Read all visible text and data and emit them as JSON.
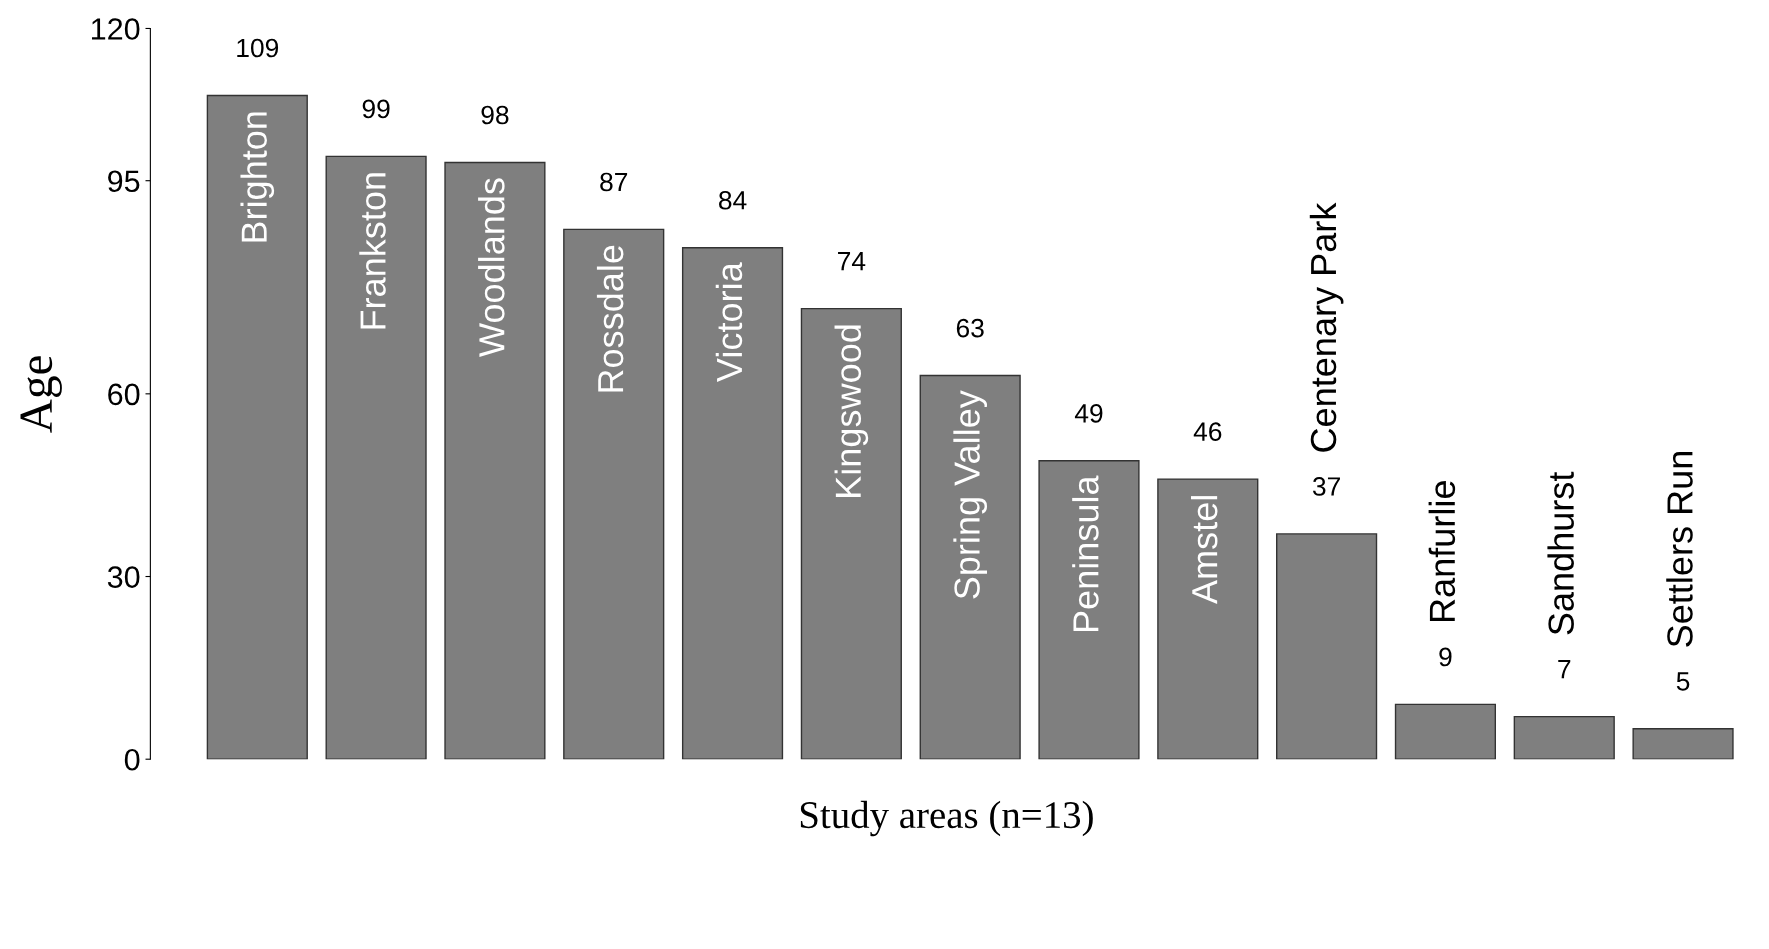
{
  "chart_data": {
    "type": "bar",
    "xlabel": "Study areas (n=13)",
    "ylabel": "Age",
    "categories": [
      "Brighton",
      "Frankston",
      "Woodlands",
      "Rossdale",
      "Victoria",
      "Kingswood",
      "Spring Valley",
      "Peninsula",
      "Amstel",
      "Centenary Park",
      "Ranfurlie",
      "Sandhurst",
      "Settlers Run"
    ],
    "values": [
      109,
      99,
      98,
      87,
      84,
      74,
      63,
      49,
      46,
      37,
      9,
      7,
      5
    ],
    "color": "#7f7f7f",
    "ylim": [
      0,
      120
    ],
    "yticks": [
      0,
      30,
      60,
      95,
      120
    ],
    "data_labels": true,
    "grid": false,
    "legend": false
  }
}
